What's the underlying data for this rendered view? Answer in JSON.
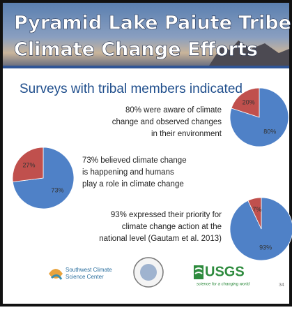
{
  "header": {
    "title_lines": [
      "Pyramid Lake Paiute Tribe",
      "Climate Change Efforts"
    ]
  },
  "subtitle": "Surveys with tribal members indicated",
  "statements": [
    {
      "lines": [
        "80% were aware of climate",
        "change and observed changes",
        "in their environment"
      ]
    },
    {
      "lines": [
        "73% believed climate change",
        "is happening and humans",
        "play a role in climate change"
      ]
    },
    {
      "lines": [
        "93% expressed their priority for",
        "climate change action at the",
        "national level (Gautam et al. 2013)"
      ]
    }
  ],
  "footer": {
    "scsc_lines": [
      "Southwest Climate",
      "Science Center"
    ],
    "usgs": "USGS",
    "usgs_tagline": "science for a changing world",
    "page": "34"
  },
  "chart_data": [
    {
      "type": "pie",
      "values": [
        80,
        20
      ],
      "value_labels": [
        "80%",
        "20%"
      ],
      "colors": [
        "#4f81c7",
        "#c0504d"
      ]
    },
    {
      "type": "pie",
      "values": [
        73,
        27
      ],
      "value_labels": [
        "73%",
        "27%"
      ],
      "colors": [
        "#4f81c7",
        "#c0504d"
      ]
    },
    {
      "type": "pie",
      "values": [
        93,
        7
      ],
      "value_labels": [
        "93%",
        "7%"
      ],
      "colors": [
        "#4f81c7",
        "#c0504d"
      ]
    }
  ]
}
